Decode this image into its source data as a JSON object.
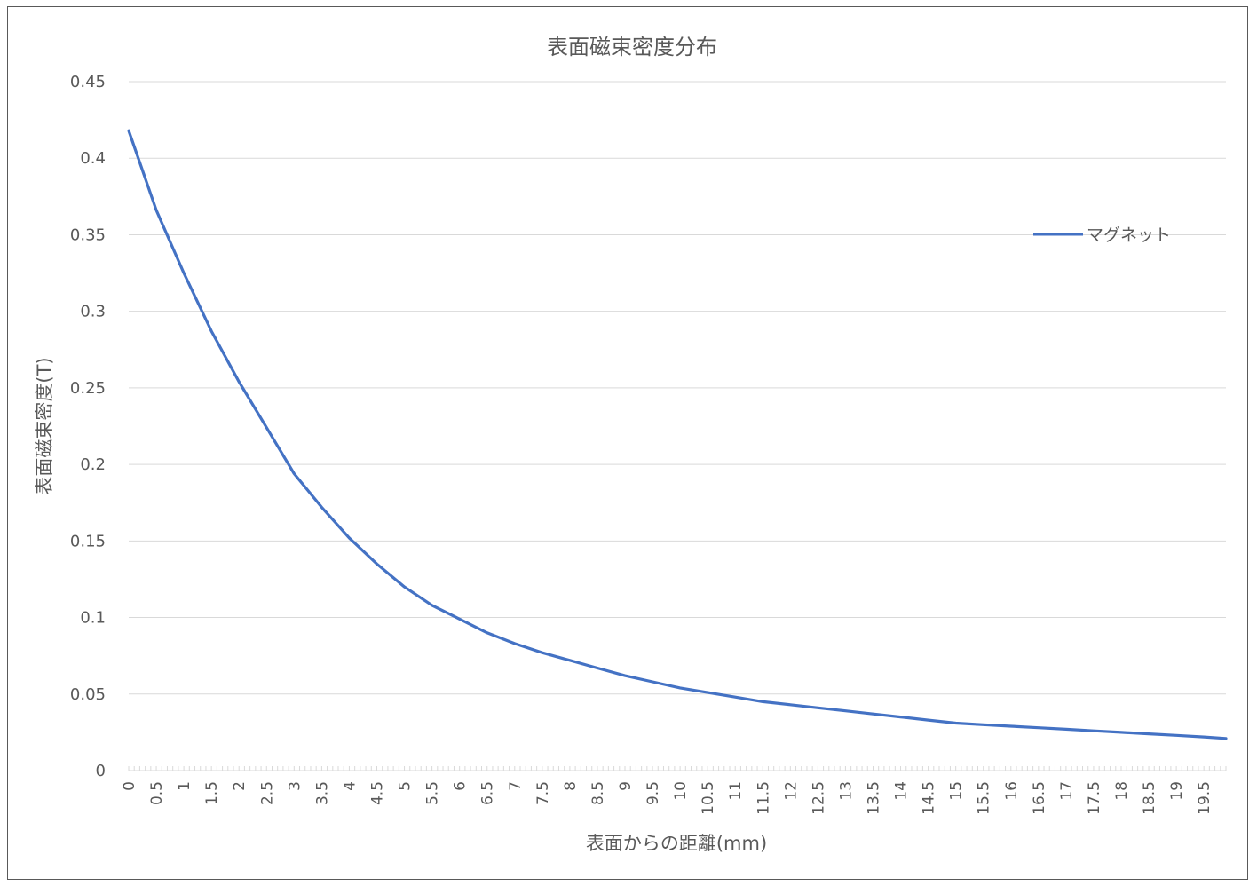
{
  "chart_data": {
    "type": "line",
    "title": "表面磁束密度分布",
    "xlabel": "表面からの距離(mm)",
    "ylabel": "表面磁束密度(T)",
    "ylim": [
      0,
      0.45
    ],
    "yticks": [
      "0",
      "0.05",
      "0.1",
      "0.15",
      "0.2",
      "0.25",
      "0.3",
      "0.35",
      "0.4",
      "0.45"
    ],
    "xlim": [
      0,
      19.9
    ],
    "xticks": [
      "0",
      "0.5",
      "1",
      "1.5",
      "2",
      "2.5",
      "3",
      "3.5",
      "4",
      "4.5",
      "5",
      "5.5",
      "6",
      "6.5",
      "7",
      "7.5",
      "8",
      "8.5",
      "9",
      "9.5",
      "10",
      "10.5",
      "11",
      "11.5",
      "12",
      "12.5",
      "13",
      "13.5",
      "14",
      "14.5",
      "15",
      "15.5",
      "16",
      "16.5",
      "17",
      "17.5",
      "18",
      "18.5",
      "19",
      "19.5"
    ],
    "grid": true,
    "legend_position": "right",
    "series": [
      {
        "name": "マグネット",
        "color": "#4472C4",
        "x": [
          0,
          0.5,
          1,
          1.5,
          2,
          2.5,
          3,
          3.5,
          4,
          4.5,
          5,
          5.5,
          6,
          6.5,
          7,
          7.5,
          8,
          8.5,
          9,
          9.5,
          10,
          10.5,
          11,
          11.5,
          12,
          12.5,
          13,
          13.5,
          14,
          14.5,
          15,
          15.5,
          16,
          16.5,
          17,
          17.5,
          18,
          18.5,
          19,
          19.5,
          19.9
        ],
        "values": [
          0.418,
          0.366,
          0.325,
          0.287,
          0.254,
          0.224,
          0.194,
          0.172,
          0.152,
          0.135,
          0.12,
          0.108,
          0.099,
          0.09,
          0.083,
          0.077,
          0.072,
          0.067,
          0.062,
          0.058,
          0.054,
          0.051,
          0.048,
          0.045,
          0.043,
          0.041,
          0.039,
          0.037,
          0.035,
          0.033,
          0.031,
          0.03,
          0.029,
          0.028,
          0.027,
          0.026,
          0.025,
          0.024,
          0.023,
          0.022,
          0.021
        ]
      }
    ]
  }
}
